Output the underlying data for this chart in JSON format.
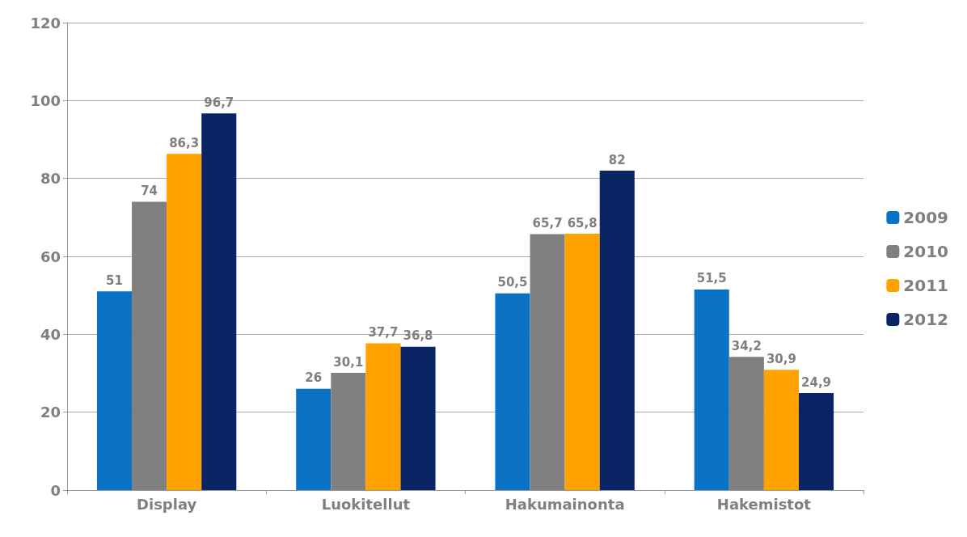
{
  "chart_data": {
    "type": "bar",
    "categories": [
      "Display",
      "Luokitellut",
      "Hakumainonta",
      "Hakemistot"
    ],
    "series": [
      {
        "name": "2009",
        "color": "#0a72c4",
        "values": [
          51,
          26,
          50.5,
          51.5
        ],
        "value_labels": [
          "51",
          "26",
          "50,5",
          "51,5"
        ]
      },
      {
        "name": "2010",
        "color": "#808080",
        "values": [
          74,
          30.1,
          65.7,
          34.2
        ],
        "value_labels": [
          "74",
          "30,1",
          "65,7",
          "34,2"
        ]
      },
      {
        "name": "2011",
        "color": "#ffa200",
        "values": [
          86.3,
          37.7,
          65.8,
          30.9
        ],
        "value_labels": [
          "86,3",
          "37,7",
          "65,8",
          "30,9"
        ]
      },
      {
        "name": "2012",
        "color": "#0a2466",
        "values": [
          96.7,
          36.8,
          82,
          24.9
        ],
        "value_labels": [
          "96,7",
          "36,8",
          "82",
          "24,9"
        ]
      }
    ],
    "ylim": [
      0,
      120
    ],
    "yticks": [
      0,
      20,
      40,
      60,
      80,
      100,
      120
    ],
    "grid": "y",
    "legend": "right"
  }
}
